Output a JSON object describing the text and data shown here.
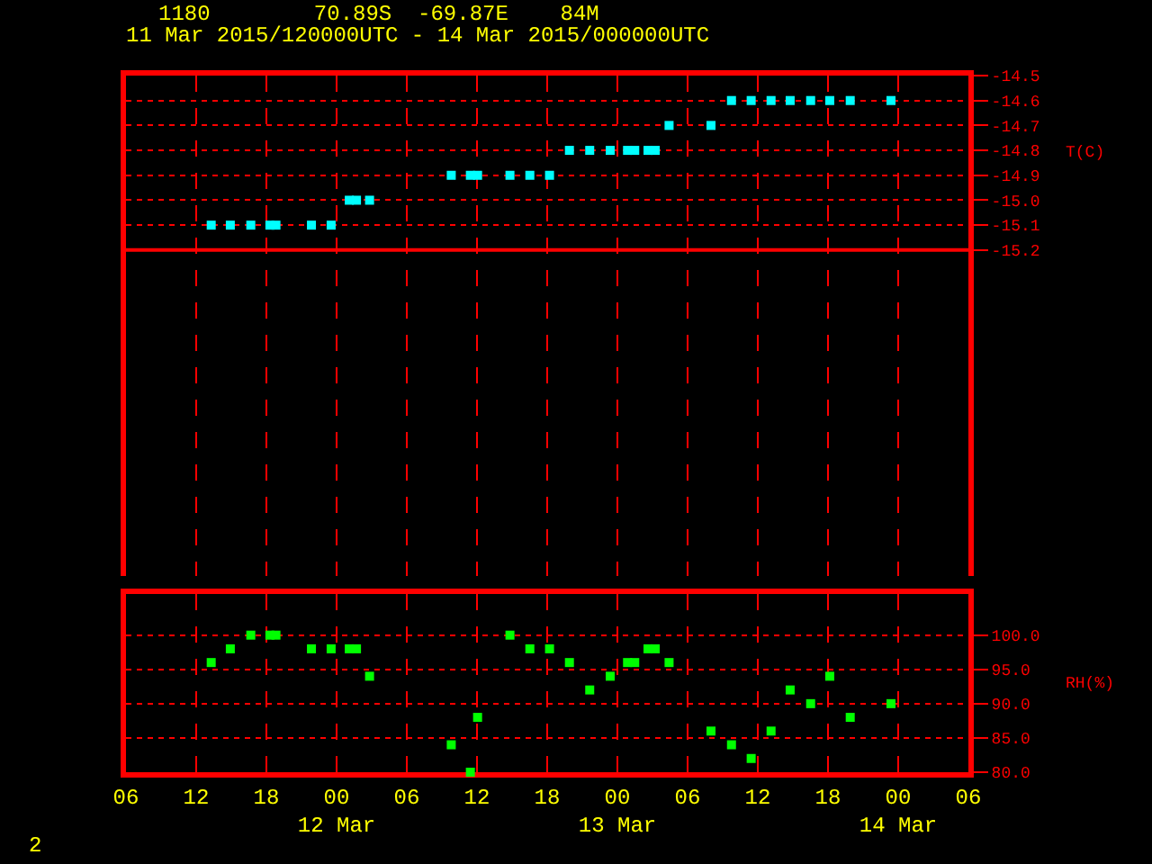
{
  "chart_data": [
    {
      "type": "scatter",
      "title": "1180        70.89S  -69.87E    84M",
      "subtitle": "11 Mar 2015/120000UTC - 14 Mar 2015/000000UTC",
      "ylabel": "T(C)",
      "x": [
        "2015-03-11T13:17",
        "2015-03-11T14:55",
        "2015-03-11T16:40",
        "2015-03-11T18:18",
        "2015-03-11T18:49",
        "2015-03-11T21:51",
        "2015-03-11T23:32",
        "2015-03-12T01:05",
        "2015-03-12T01:42",
        "2015-03-12T02:49",
        "2015-03-12T09:48",
        "2015-03-12T11:26",
        "2015-03-12T12:03",
        "2015-03-12T14:49",
        "2015-03-12T16:31",
        "2015-03-12T18:12",
        "2015-03-12T19:54",
        "2015-03-12T21:38",
        "2015-03-12T23:23",
        "2015-03-13T00:52",
        "2015-03-13T01:29",
        "2015-03-13T02:37",
        "2015-03-13T03:14",
        "2015-03-13T04:25",
        "2015-03-13T08:00",
        "2015-03-13T09:45",
        "2015-03-13T11:26",
        "2015-03-13T13:08",
        "2015-03-13T14:46",
        "2015-03-13T16:31",
        "2015-03-13T18:09",
        "2015-03-13T19:54",
        "2015-03-13T23:23"
      ],
      "series": [
        {
          "color": "#00ffff",
          "values": [
            -15.1,
            -15.1,
            -15.1,
            -15.1,
            -15.1,
            -15.1,
            -15.1,
            -15.0,
            -15.0,
            -15.0,
            -14.9,
            -14.9,
            -14.9,
            -14.9,
            -14.9,
            -14.9,
            -14.8,
            -14.8,
            -14.8,
            -14.8,
            -14.8,
            -14.8,
            -14.8,
            -14.7,
            -14.7,
            -14.6,
            -14.6,
            -14.6,
            -14.6,
            -14.6,
            -14.6,
            -14.6,
            -14.6
          ]
        }
      ],
      "xlim": [
        "2015-03-11T06:00",
        "2015-03-14T06:00"
      ],
      "xticks": [
        {
          "value": "2015-03-11T06:00",
          "label": null
        },
        {
          "value": "2015-03-11T12:00",
          "label": null
        },
        {
          "value": "2015-03-11T18:00",
          "label": null
        },
        {
          "value": "2015-03-12T00:00",
          "label": null
        },
        {
          "value": "2015-03-12T06:00",
          "label": null
        },
        {
          "value": "2015-03-12T12:00",
          "label": null
        },
        {
          "value": "2015-03-12T18:00",
          "label": null
        },
        {
          "value": "2015-03-13T00:00",
          "label": null
        },
        {
          "value": "2015-03-13T06:00",
          "label": null
        },
        {
          "value": "2015-03-13T12:00",
          "label": null
        },
        {
          "value": "2015-03-13T18:00",
          "label": null
        },
        {
          "value": "2015-03-14T00:00",
          "label": null
        },
        {
          "value": "2015-03-14T06:00",
          "label": null
        }
      ],
      "ylim": [
        -16.58,
        -14.5
      ],
      "ref_lines": [
        {
          "axis": "y",
          "value": -15.2,
          "color": "#ff0000"
        }
      ],
      "yticks": [
        -14.5,
        -14.6,
        -14.7,
        -14.8,
        -14.9,
        {
          "value": -15.0,
          "label": "-15.0"
        },
        -15.1,
        -15.2
      ],
      "grid": true,
      "marker": "square",
      "tick_labels": "y"
    },
    {
      "type": "scatter",
      "ylabel": "RH(%)",
      "annotations": [
        "2"
      ],
      "x": [
        "2015-03-11T13:17",
        "2015-03-11T14:55",
        "2015-03-11T16:40",
        "2015-03-11T18:18",
        "2015-03-11T18:49",
        "2015-03-11T21:51",
        "2015-03-11T23:32",
        "2015-03-12T01:05",
        "2015-03-12T01:42",
        "2015-03-12T02:49",
        "2015-03-12T09:48",
        "2015-03-12T11:26",
        "2015-03-12T12:03",
        "2015-03-12T14:49",
        "2015-03-12T16:31",
        "2015-03-12T18:12",
        "2015-03-12T19:54",
        "2015-03-12T21:38",
        "2015-03-12T23:23",
        "2015-03-13T00:52",
        "2015-03-13T01:29",
        "2015-03-13T02:37",
        "2015-03-13T03:14",
        "2015-03-13T04:25",
        "2015-03-13T08:00",
        "2015-03-13T09:45",
        "2015-03-13T11:26",
        "2015-03-13T13:08",
        "2015-03-13T14:46",
        "2015-03-13T16:31",
        "2015-03-13T18:09",
        "2015-03-13T19:54",
        "2015-03-13T23:23"
      ],
      "series": [
        {
          "color": "#00ff00",
          "values": [
            96,
            98,
            100,
            100,
            100,
            98,
            98,
            98,
            98,
            94,
            84,
            80,
            88,
            100,
            98,
            98,
            96,
            92,
            94,
            96,
            96,
            98,
            98,
            96,
            86,
            84,
            82,
            86,
            92,
            90,
            94,
            88,
            90
          ]
        }
      ],
      "xlim": [
        "2015-03-11T06:00",
        "2015-03-14T06:00"
      ],
      "xticks": [
        {
          "value": "2015-03-11T06:00",
          "label": "06"
        },
        {
          "value": "2015-03-11T12:00",
          "label": "12"
        },
        {
          "value": "2015-03-11T18:00",
          "label": "18"
        },
        {
          "value": "2015-03-12T00:00",
          "label": "00\n12 Mar"
        },
        {
          "value": "2015-03-12T06:00",
          "label": "06"
        },
        {
          "value": "2015-03-12T12:00",
          "label": "12"
        },
        {
          "value": "2015-03-12T18:00",
          "label": "18"
        },
        {
          "value": "2015-03-13T00:00",
          "label": "00\n13 Mar"
        },
        {
          "value": "2015-03-13T06:00",
          "label": "06"
        },
        {
          "value": "2015-03-13T12:00",
          "label": "12"
        },
        {
          "value": "2015-03-13T18:00",
          "label": "18"
        },
        {
          "value": "2015-03-14T00:00",
          "label": "00\n14 Mar"
        },
        {
          "value": "2015-03-14T06:00",
          "label": "06"
        }
      ],
      "ylim": [
        80,
        106
      ],
      "yticks": [
        {
          "value": 100,
          "label": "100.0"
        },
        {
          "value": 95,
          "label": "95.0"
        },
        {
          "value": 90,
          "label": "90.0"
        },
        {
          "value": 85,
          "label": "85.0"
        },
        {
          "value": 80,
          "label": "80.0"
        }
      ],
      "grid": true,
      "marker": "square"
    }
  ]
}
